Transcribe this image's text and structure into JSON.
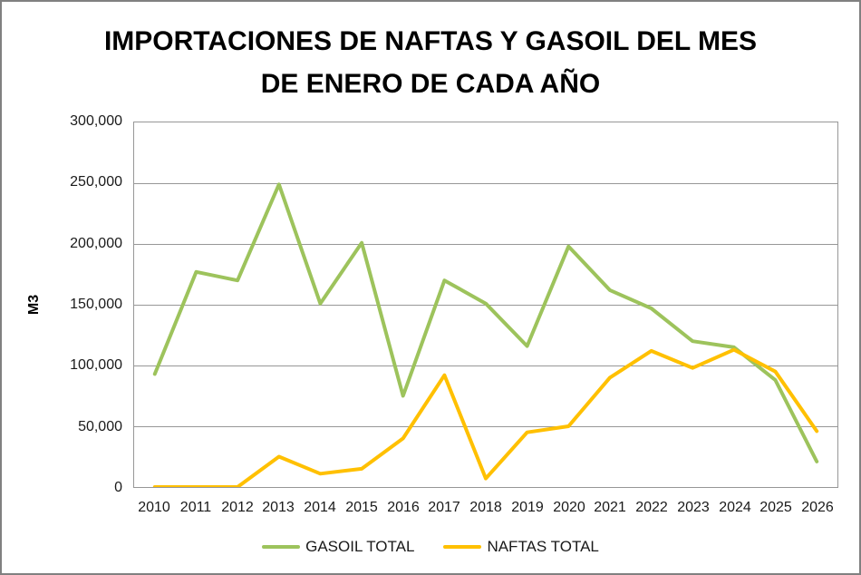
{
  "title": {
    "line1": "IMPORTACIONES DE NAFTAS Y GASOIL DEL MES",
    "line2": "DE ENERO DE CADA AÑO"
  },
  "y_axis": {
    "label": "M3",
    "ticks": [
      "300,000",
      "250,000",
      "200,000",
      "150,000",
      "100,000",
      "50,000",
      "0"
    ]
  },
  "x_axis": {
    "ticks": [
      "2010",
      "2011",
      "2012",
      "2013",
      "2014",
      "2015",
      "2016",
      "2017",
      "2018",
      "2019",
      "2020",
      "2021",
      "2022",
      "2023",
      "2024",
      "2025",
      "2026"
    ]
  },
  "chart_data": {
    "type": "line",
    "title": "IMPORTACIONES DE NAFTAS Y GASOIL DEL MES DE ENERO DE CADA AÑO",
    "xlabel": "",
    "ylabel": "M3",
    "ylim": [
      0,
      300000
    ],
    "ytick_step": 50000,
    "grid": true,
    "legend_position": "bottom",
    "categories": [
      "2010",
      "2011",
      "2012",
      "2013",
      "2014",
      "2015",
      "2016",
      "2017",
      "2018",
      "2019",
      "2020",
      "2021",
      "2022",
      "2023",
      "2024",
      "2025",
      "2026"
    ],
    "series": [
      {
        "name": "GASOIL TOTAL",
        "color": "#9DC35C",
        "values": [
          93000,
          177000,
          170000,
          249000,
          151000,
          201000,
          75000,
          170000,
          151000,
          116000,
          198000,
          162000,
          147000,
          120000,
          115000,
          88000,
          21000
        ]
      },
      {
        "name": "NAFTAS TOTAL",
        "color": "#FFC000",
        "values": [
          0,
          0,
          0,
          25000,
          11000,
          15000,
          40000,
          92000,
          7000,
          45000,
          50000,
          90000,
          112000,
          98000,
          113000,
          95000,
          46000
        ]
      }
    ]
  },
  "colors": {
    "gasoil_line": "#9DC35C",
    "naftas_line": "#FFC000",
    "frame_border": "#808080",
    "grid": "#979797",
    "text": "#1a1a1a"
  }
}
